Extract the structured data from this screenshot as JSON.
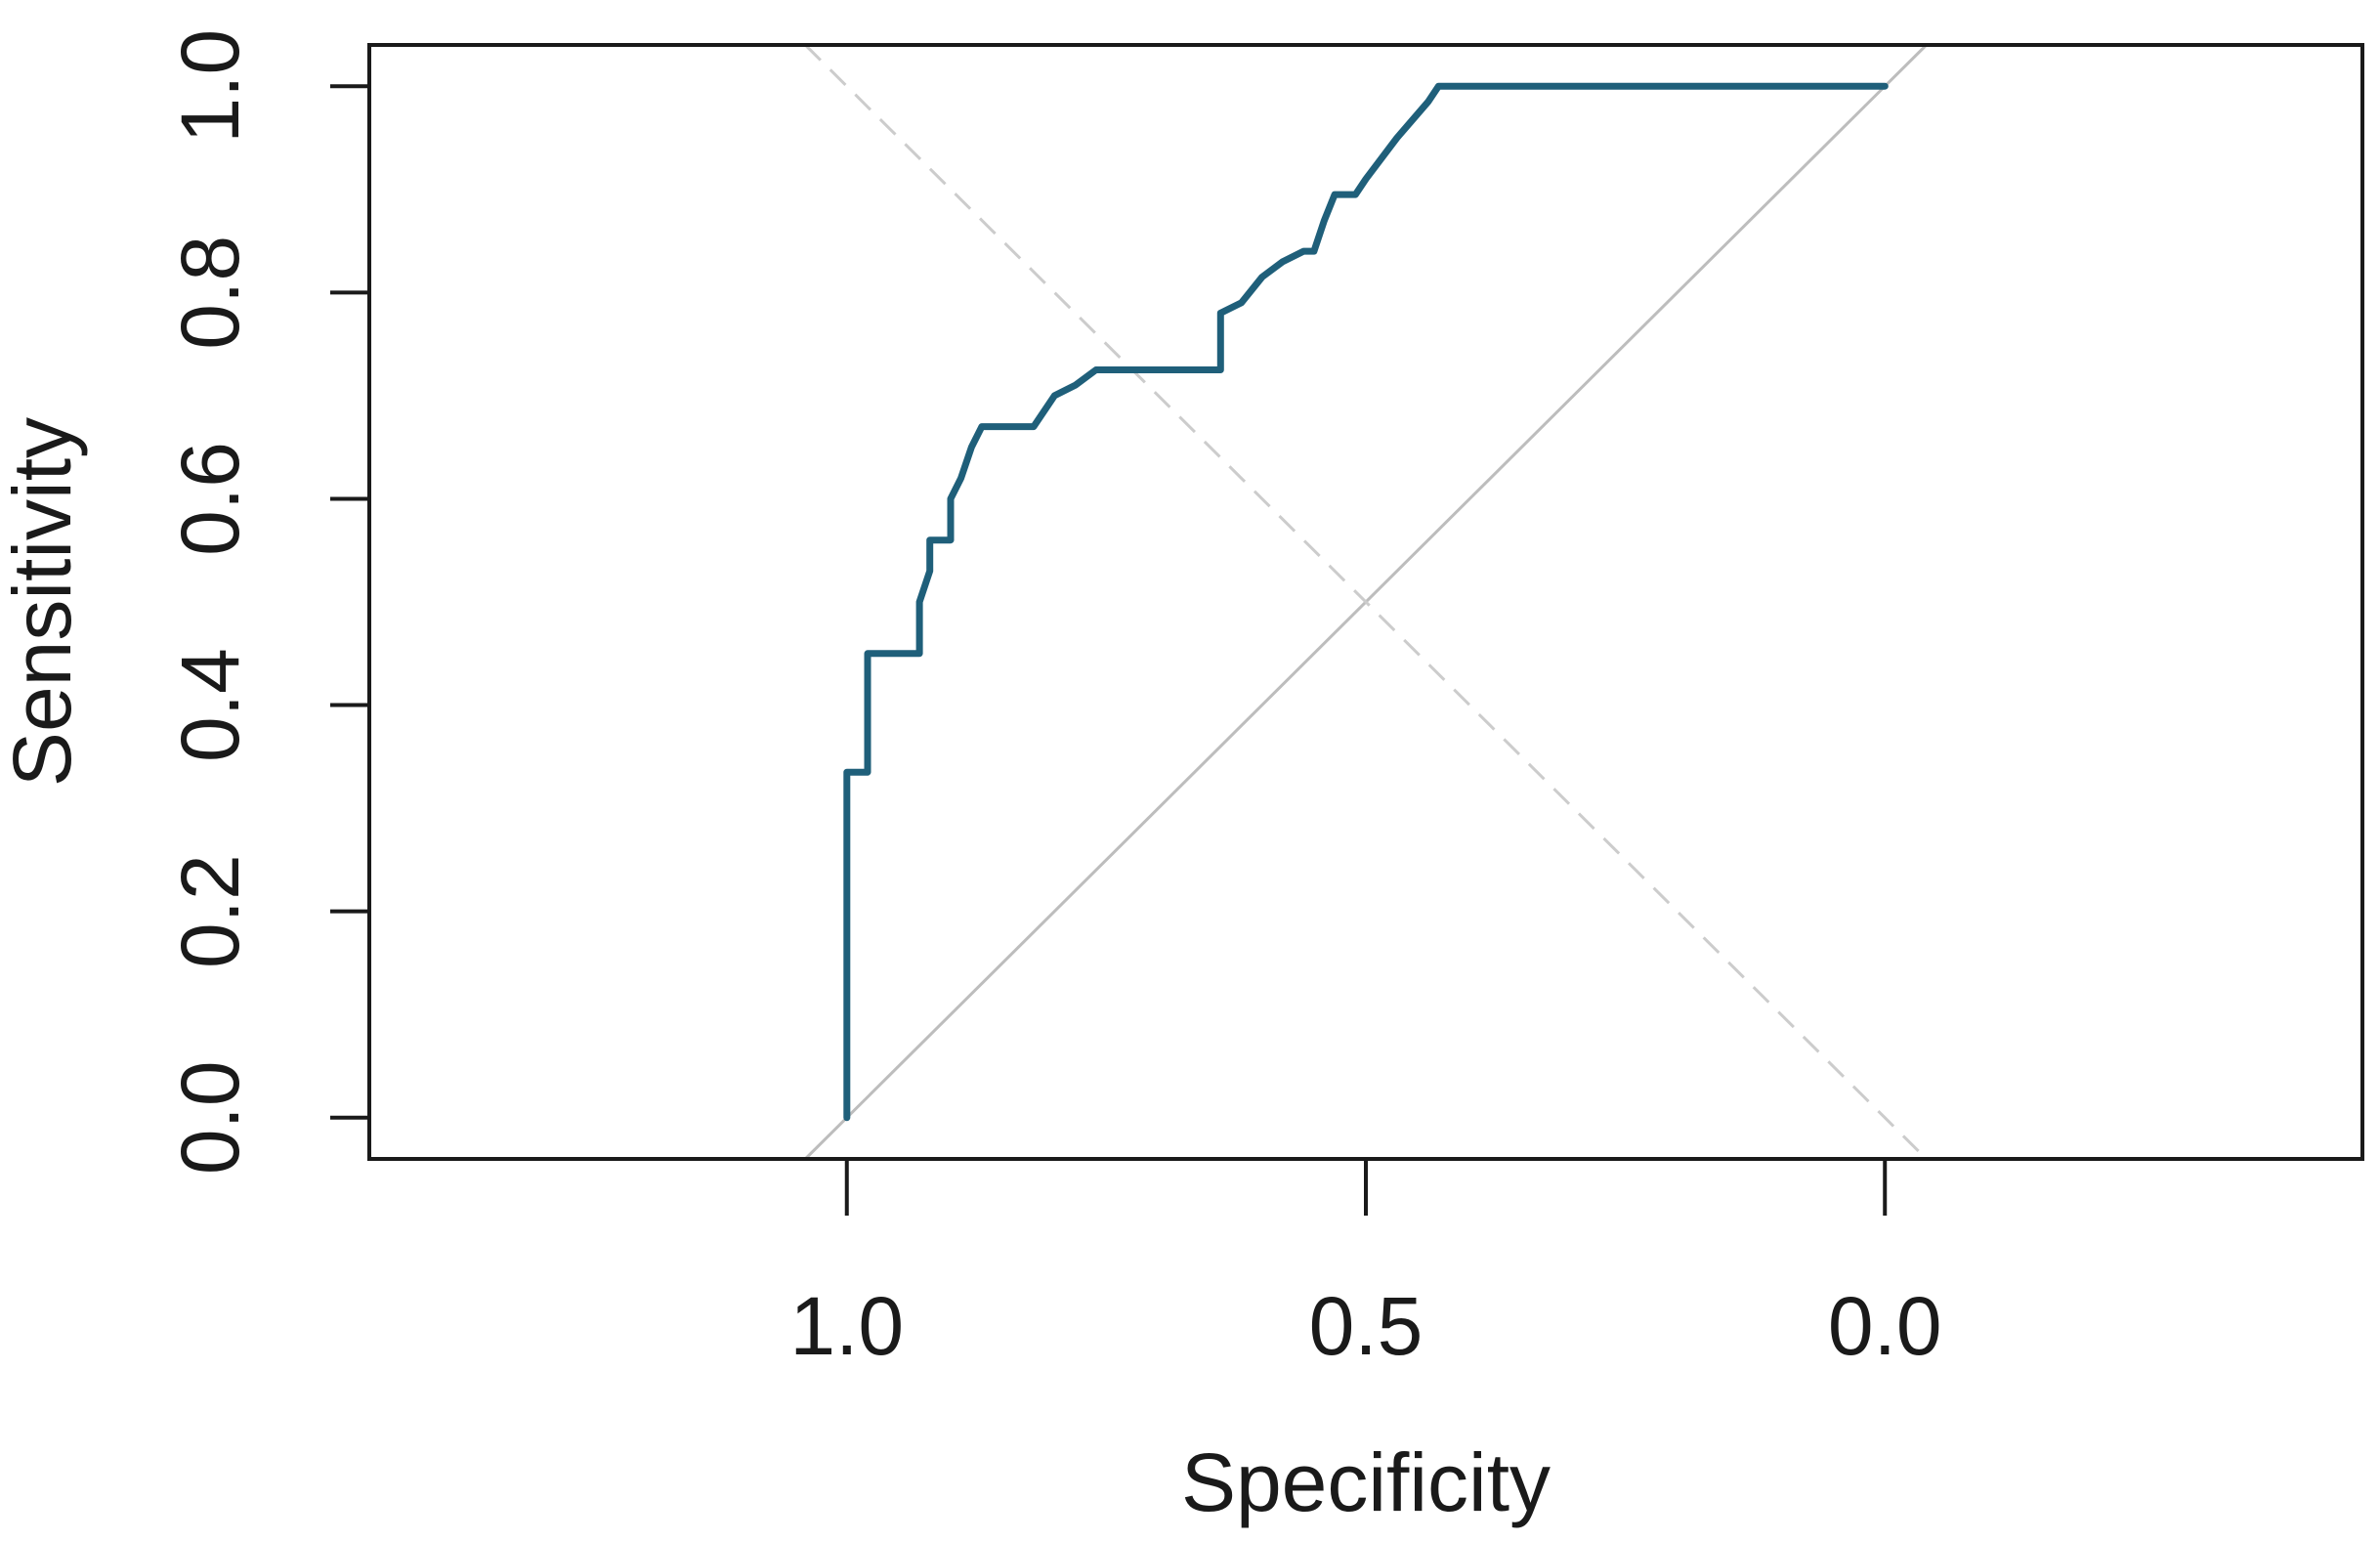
{
  "chart_data": {
    "type": "line",
    "title": "",
    "xlabel": "Specificity",
    "ylabel": "Sensitivity",
    "x_reversed": true,
    "xlim": [
      1.46,
      -0.46
    ],
    "ylim": [
      -0.04,
      1.04
    ],
    "x_ticks": [
      {
        "value": 1.0,
        "label": "1.0"
      },
      {
        "value": 0.5,
        "label": "0.5"
      },
      {
        "value": 0.0,
        "label": "0.0"
      }
    ],
    "y_ticks": [
      {
        "value": 0.0,
        "label": "0.0"
      },
      {
        "value": 0.2,
        "label": "0.2"
      },
      {
        "value": 0.4,
        "label": "0.4"
      },
      {
        "value": 0.6,
        "label": "0.6"
      },
      {
        "value": 0.8,
        "label": "0.8"
      },
      {
        "value": 1.0,
        "label": "1.0"
      }
    ],
    "grid": false,
    "series": [
      {
        "color": "#1f5f7a",
        "specificity": [
          1.0,
          1.0,
          0.99,
          0.99,
          0.98,
          0.98,
          0.93,
          0.93,
          0.92,
          0.92,
          0.91,
          0.9,
          0.9,
          0.89,
          0.88,
          0.87,
          0.86,
          0.86,
          0.82,
          0.8,
          0.78,
          0.76,
          0.64,
          0.64,
          0.62,
          0.6,
          0.58,
          0.56,
          0.55,
          0.54,
          0.53,
          0.51,
          0.5,
          0.47,
          0.44,
          0.43,
          0.0
        ],
        "sensitivity": [
          0.0,
          0.335,
          0.335,
          0.335,
          0.335,
          0.45,
          0.45,
          0.5,
          0.53,
          0.56,
          0.56,
          0.56,
          0.6,
          0.62,
          0.65,
          0.67,
          0.67,
          0.67,
          0.67,
          0.7,
          0.71,
          0.725,
          0.725,
          0.78,
          0.79,
          0.815,
          0.83,
          0.84,
          0.84,
          0.87,
          0.895,
          0.895,
          0.91,
          0.95,
          0.985,
          1.0,
          1.0
        ]
      }
    ],
    "reference_lines": [
      {
        "kind": "diagonal",
        "style": "solid",
        "color": "#bdbdbd",
        "from": [
          1.04,
          -0.04
        ],
        "to": [
          -0.04,
          1.04
        ]
      },
      {
        "kind": "anti-diagonal",
        "style": "dashed",
        "color": "#cccccc",
        "from": [
          1.04,
          1.04
        ],
        "to": [
          -0.04,
          -0.04
        ]
      }
    ]
  }
}
